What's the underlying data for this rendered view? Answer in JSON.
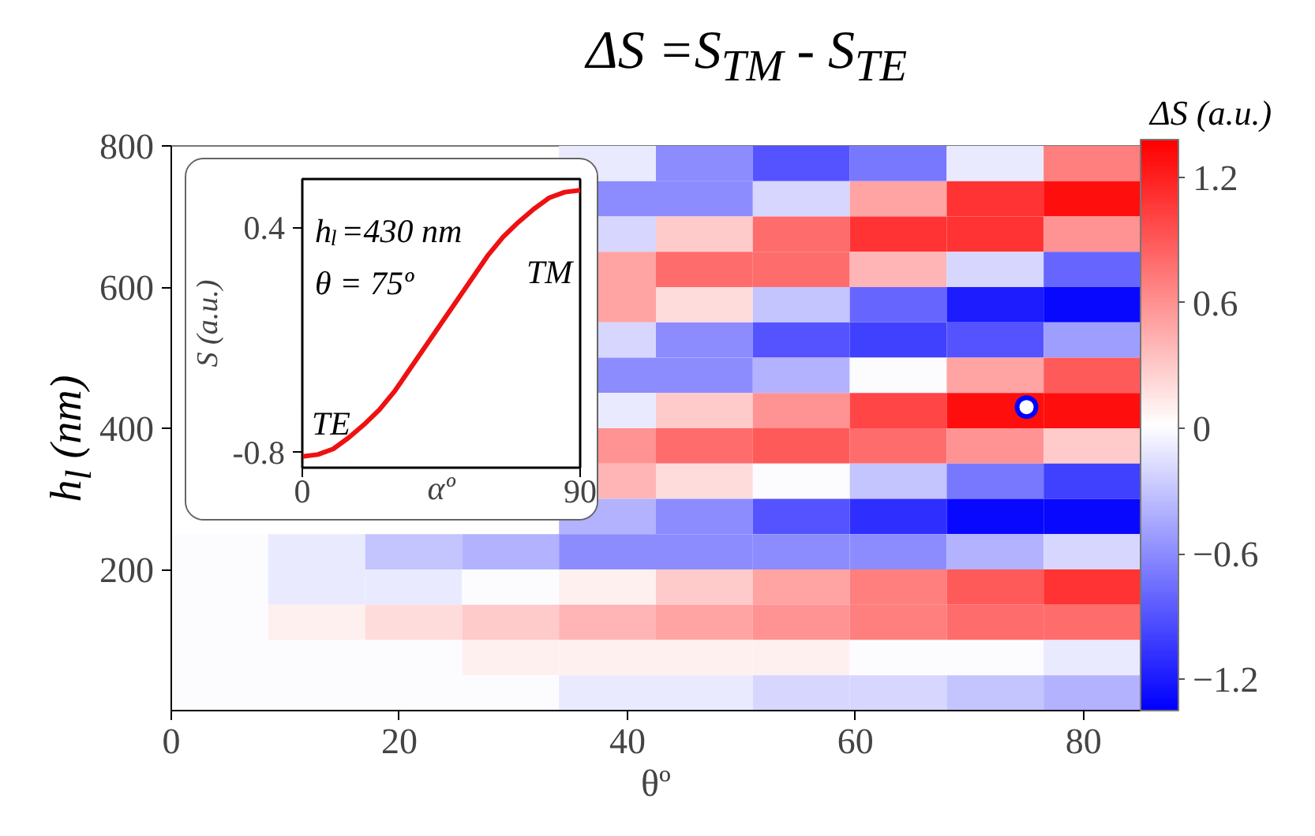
{
  "chart_data": [
    {
      "type": "heatmap",
      "title": "ΔS =S$_{TM}$ - S$_{TE}$",
      "xlabel": "θº",
      "ylabel": "h$_{l}$ (nm)",
      "clabel": "ΔS (a.u.)",
      "xlim": [
        0,
        85
      ],
      "ylim": [
        0,
        800
      ],
      "xticks": [
        0,
        20,
        40,
        60,
        80
      ],
      "yticks": [
        200,
        400,
        600,
        800
      ],
      "grid": false,
      "x": [
        4.25,
        12.75,
        21.25,
        29.75,
        38.25,
        46.75,
        55.25,
        63.75,
        72.25,
        80.75
      ],
      "y": [
        775,
        725,
        675,
        625,
        575,
        525,
        475,
        425,
        375,
        325,
        275,
        225,
        175,
        125,
        75,
        25
      ],
      "cells": [
        [
          null,
          null,
          null,
          null,
          -0.1,
          -0.6,
          -0.9,
          -0.7,
          -0.1,
          0.7
        ],
        [
          null,
          null,
          null,
          null,
          -0.6,
          -0.6,
          -0.2,
          0.5,
          1.1,
          1.3
        ],
        [
          null,
          null,
          null,
          null,
          -0.2,
          0.3,
          0.8,
          1.1,
          1.1,
          0.6
        ],
        [
          null,
          null,
          null,
          null,
          0.5,
          0.8,
          0.8,
          0.4,
          -0.2,
          -0.8
        ],
        [
          null,
          null,
          null,
          null,
          0.5,
          0.2,
          -0.3,
          -0.8,
          -1.2,
          -1.3
        ],
        [
          null,
          null,
          null,
          null,
          -0.2,
          -0.6,
          -0.9,
          -1.0,
          -0.9,
          -0.5
        ],
        [
          null,
          null,
          null,
          null,
          -0.6,
          -0.6,
          -0.4,
          0.0,
          0.5,
          0.9
        ],
        [
          null,
          null,
          null,
          null,
          -0.1,
          0.3,
          0.6,
          1.0,
          1.3,
          1.3
        ],
        [
          null,
          null,
          null,
          null,
          0.6,
          0.8,
          0.9,
          0.8,
          0.6,
          0.3
        ],
        [
          null,
          null,
          null,
          null,
          0.4,
          0.2,
          0.0,
          -0.3,
          -0.7,
          -1.0
        ],
        [
          null,
          null,
          null,
          null,
          -0.4,
          -0.6,
          -0.9,
          -1.1,
          -1.3,
          -1.3
        ],
        [
          0,
          -0.1,
          -0.3,
          -0.4,
          -0.6,
          -0.6,
          -0.6,
          -0.6,
          -0.4,
          -0.2
        ],
        [
          0,
          -0.1,
          -0.1,
          0.0,
          0.1,
          0.3,
          0.5,
          0.7,
          0.9,
          1.1
        ],
        [
          0,
          0.1,
          0.2,
          0.3,
          0.4,
          0.5,
          0.6,
          0.7,
          0.8,
          0.8
        ],
        [
          0,
          0.0,
          0.0,
          0.1,
          0.1,
          0.1,
          0.1,
          0.0,
          0.0,
          -0.1
        ],
        [
          0,
          0.0,
          0.0,
          0.0,
          -0.1,
          -0.1,
          -0.2,
          -0.2,
          -0.3,
          -0.4
        ]
      ],
      "clim": [
        -1.35,
        1.38
      ],
      "cticks": [
        -1.2,
        -0.6,
        0,
        0.6,
        1.2
      ],
      "series": [
        {
          "type": "scatter",
          "x": [
            75
          ],
          "values": [
            430
          ],
          "color": "#0000ff",
          "marker": "circle"
        }
      ]
    },
    {
      "type": "line",
      "xlabel": "αº",
      "ylabel": "S (a.u.)",
      "xlim": [
        0,
        90
      ],
      "ylim": [
        -0.88,
        0.66
      ],
      "xticks": [
        0,
        90
      ],
      "yticks": [
        -0.8,
        0.4
      ],
      "grid": false,
      "line_style": "solid",
      "x": [
        0,
        5,
        10,
        15,
        20,
        25,
        30,
        35,
        40,
        45,
        50,
        55,
        60,
        65,
        70,
        75,
        80,
        85,
        90
      ],
      "series": [
        {
          "color": "#ee1111",
          "values": [
            -0.82,
            -0.81,
            -0.78,
            -0.72,
            -0.65,
            -0.57,
            -0.47,
            -0.35,
            -0.23,
            -0.11,
            0.01,
            0.13,
            0.25,
            0.35,
            0.43,
            0.5,
            0.56,
            0.59,
            0.6
          ]
        }
      ],
      "annotations": [
        "h$_{l}$=430 nm",
        "θ = 75º",
        "TM",
        "TE"
      ]
    }
  ]
}
